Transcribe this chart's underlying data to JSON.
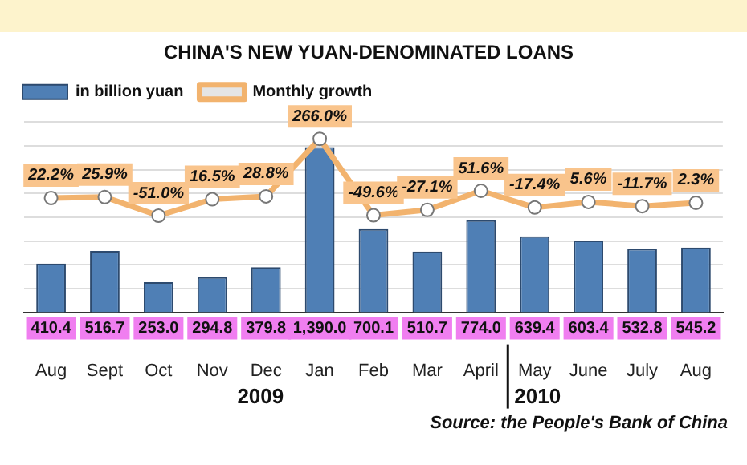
{
  "chart_data": {
    "type": "bar",
    "title": "CHINA'S NEW YUAN-DENOMINATED LOANS",
    "categories": [
      "Aug",
      "Sept",
      "Oct",
      "Nov",
      "Dec",
      "Jan",
      "Feb",
      "Mar",
      "April",
      "May",
      "June",
      "July",
      "Aug"
    ],
    "series": [
      {
        "name": "in billion yuan",
        "color": "#4f7fb5",
        "values": [
          410.4,
          516.7,
          253.0,
          294.8,
          379.8,
          1390.0,
          700.1,
          510.7,
          774.0,
          639.4,
          603.4,
          532.8,
          545.2
        ],
        "value_labels": [
          "410.4",
          "516.7",
          "253.0",
          "294.8",
          "379.8",
          "1,390.0",
          "700.1",
          "510.7",
          "774.0",
          "639.4",
          "603.4",
          "532.8",
          "545.2"
        ]
      },
      {
        "name": "Monthly growth",
        "type": "line",
        "axis": "y2",
        "color": "#f2b36e",
        "values": [
          22.2,
          25.9,
          -51.0,
          16.5,
          28.8,
          266.0,
          -49.6,
          -27.1,
          51.6,
          -17.4,
          5.6,
          -11.7,
          2.3
        ],
        "value_labels": [
          "22.2%",
          "25.9%",
          "-51.0%",
          "16.5%",
          "28.8%",
          "266.0%",
          "-49.6%",
          "-27.1%",
          "51.6%",
          "-17.4%",
          "5.6%",
          "-11.7%",
          "2.3%"
        ]
      }
    ],
    "ylim": [
      0,
      1650
    ],
    "yticks": [
      {
        "value": 200,
        "label": null
      },
      {
        "value": 400,
        "label": null
      },
      {
        "value": 600,
        "label": null
      },
      {
        "value": 800,
        "label": null
      },
      {
        "value": 1000,
        "label": null
      },
      {
        "value": 1200,
        "label": null
      },
      {
        "value": 1400,
        "label": null
      },
      {
        "value": 1600,
        "label": null
      }
    ],
    "y2lim": [
      -450,
      360
    ],
    "tick_labels": "x",
    "grid": "y",
    "legend": "top left",
    "marker": "circle",
    "annotations": [
      "2009",
      "2010",
      "Source: the People's Bank of China"
    ]
  }
}
